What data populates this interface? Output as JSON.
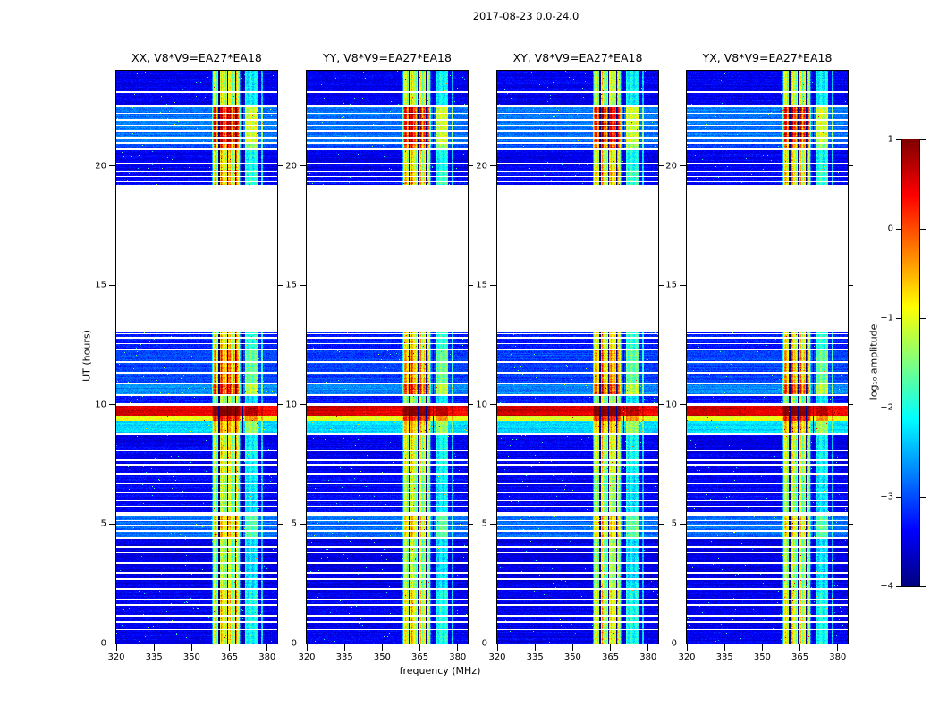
{
  "chart_data": {
    "type": "heatmap",
    "title": "2017-08-23 0.0-24.0",
    "colormap": "jet",
    "value_units": "log10 amplitude",
    "panels": [
      {
        "title": "XX, V8*V9=EA27*EA18",
        "seed": 11
      },
      {
        "title": "YY, V8*V9=EA27*EA18",
        "seed": 22
      },
      {
        "title": "XY, V8*V9=EA27*EA18",
        "seed": 33
      },
      {
        "title": "YX, V8*V9=EA27*EA18",
        "seed": 44
      }
    ],
    "x_axis": {
      "label": "frequency (MHz)",
      "range": [
        320,
        384
      ],
      "ticks": [
        320,
        335,
        350,
        365,
        380
      ]
    },
    "y_axis": {
      "label": "UT (hours)",
      "range": [
        0,
        24
      ],
      "ticks": [
        0,
        5,
        10,
        15,
        20
      ]
    },
    "colorbar": {
      "label": "log₁₀ amplitude",
      "range": [
        -4,
        1
      ],
      "ticks": [
        1,
        0,
        -1,
        -2,
        -3,
        -4
      ]
    },
    "features": [
      "no data (white) between UT 13.1 and 19.2",
      "strong broadband burst across all frequencies at UT 9.5-10.0",
      "persistent strong RFI band near 358-370 MHz",
      "weaker RFI band near 371-376 MHz",
      "many flagged time rows appear as thin white horizontal lines",
      "dark flagged channels appear as dark vertical lines inside the RFI band"
    ],
    "blocks": [
      [
        0.0,
        2.25,
        -3.45,
        2.5
      ],
      [
        2.25,
        4.45,
        -3.5,
        2.2
      ],
      [
        4.45,
        5.35,
        -2.85,
        2.1
      ],
      [
        5.35,
        7.15,
        -3.4,
        2.1
      ],
      [
        7.15,
        8.78,
        -3.45,
        2.4
      ],
      [
        8.78,
        9.32,
        -2.3,
        1.7
      ],
      [
        9.32,
        9.52,
        -1.0,
        1.2
      ],
      [
        9.52,
        9.97,
        0.35,
        0.6
      ],
      [
        9.97,
        10.38,
        -3.3,
        1.9
      ],
      [
        10.38,
        10.88,
        -2.7,
        2.7
      ],
      [
        10.88,
        12.32,
        -3.05,
        2.6
      ],
      [
        12.32,
        13.05,
        -3.25,
        2.4
      ],
      [
        19.22,
        19.85,
        -3.35,
        2.7
      ],
      [
        19.85,
        20.68,
        -3.45,
        2.5
      ],
      [
        20.68,
        20.95,
        -3.0,
        2.9
      ],
      [
        20.95,
        22.5,
        -2.8,
        3.1
      ],
      [
        22.5,
        24.0,
        -3.45,
        2.3
      ]
    ],
    "gaps": [
      [
        13.05,
        19.22
      ],
      [
        9.97,
        10.06
      ],
      [
        22.45,
        22.58
      ],
      [
        5.35,
        5.5
      ]
    ],
    "lines": [
      0.58,
      0.9,
      1.15,
      1.6,
      1.85,
      2.28,
      2.7,
      2.95,
      3.38,
      3.8,
      4.05,
      4.42,
      4.72,
      4.95,
      5.15,
      5.75,
      5.98,
      6.32,
      6.72,
      7.12,
      7.5,
      7.68,
      8.1,
      8.76,
      10.4,
      10.9,
      11.35,
      11.78,
      12.33,
      12.56,
      12.8,
      12.97,
      19.34,
      19.56,
      19.78,
      20.1,
      20.7,
      20.97,
      21.2,
      21.45,
      21.7,
      21.95,
      22.2,
      23.1
    ],
    "rfi": {
      "main": [
        358.0,
        369.5
      ],
      "secondary": [
        371.2,
        376.2
      ],
      "secondary_factor": 0.55,
      "tertiary": [
        377.6,
        378.4
      ],
      "tertiary_factor": 0.45,
      "notches": [
        360.9,
        364.3,
        367.4,
        370.3
      ],
      "notch_width": 0.55
    },
    "noise": {
      "pixel": 0.25,
      "row": 0.12,
      "speckle_prob": 0.004
    }
  }
}
